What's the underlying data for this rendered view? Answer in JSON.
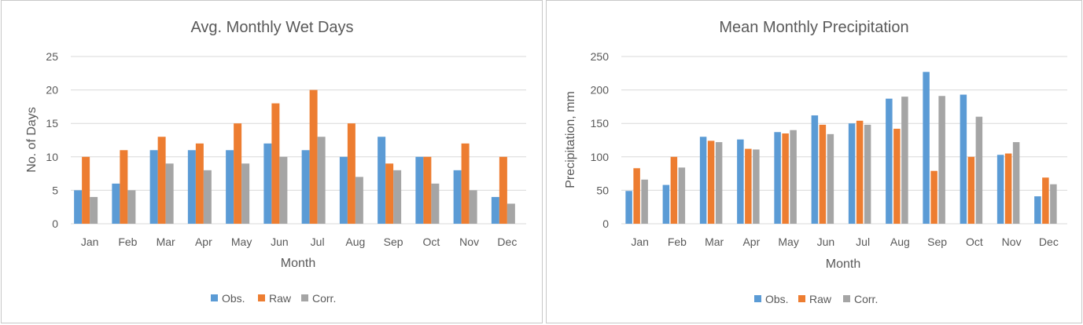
{
  "colors": {
    "obs": "#5b9bd5",
    "raw": "#ed7d31",
    "corr": "#a5a5a5",
    "grid": "#d9d9d9",
    "text": "#595959"
  },
  "chart_data": [
    {
      "type": "bar",
      "title": "Avg. Monthly Wet Days",
      "xlabel": "Month",
      "ylabel": "No. of Days",
      "ylim": [
        0,
        25
      ],
      "yticks": [
        0,
        5,
        10,
        15,
        20,
        25
      ],
      "grid": true,
      "legend_position": "bottom",
      "categories": [
        "Jan",
        "Feb",
        "Mar",
        "Apr",
        "May",
        "Jun",
        "Jul",
        "Aug",
        "Sep",
        "Oct",
        "Nov",
        "Dec"
      ],
      "series": [
        {
          "name": "Obs.",
          "values": [
            5,
            6,
            11,
            11,
            11,
            12,
            11,
            10,
            13,
            10,
            8,
            4
          ]
        },
        {
          "name": "Raw",
          "values": [
            10,
            11,
            13,
            12,
            15,
            18,
            20,
            15,
            9,
            10,
            12,
            10
          ]
        },
        {
          "name": "Corr.",
          "values": [
            4,
            5,
            9,
            8,
            9,
            10,
            13,
            7,
            8,
            6,
            5,
            3
          ]
        }
      ]
    },
    {
      "type": "bar",
      "title": "Mean Monthly Precipitation",
      "xlabel": "Month",
      "ylabel": "Precipitation, mm",
      "ylim": [
        0,
        250
      ],
      "yticks": [
        0,
        50,
        100,
        150,
        200,
        250
      ],
      "grid": true,
      "legend_position": "bottom",
      "categories": [
        "Jan",
        "Feb",
        "Mar",
        "Apr",
        "May",
        "Jun",
        "Jul",
        "Aug",
        "Sep",
        "Oct",
        "Nov",
        "Dec"
      ],
      "series": [
        {
          "name": "Obs.",
          "values": [
            49,
            58,
            130,
            126,
            137,
            162,
            150,
            187,
            227,
            193,
            103,
            41
          ]
        },
        {
          "name": "Raw",
          "values": [
            83,
            100,
            124,
            112,
            135,
            148,
            154,
            142,
            79,
            100,
            105,
            69
          ]
        },
        {
          "name": "Corr.",
          "values": [
            66,
            84,
            122,
            111,
            140,
            134,
            148,
            190,
            191,
            160,
            122,
            59
          ]
        }
      ]
    }
  ]
}
